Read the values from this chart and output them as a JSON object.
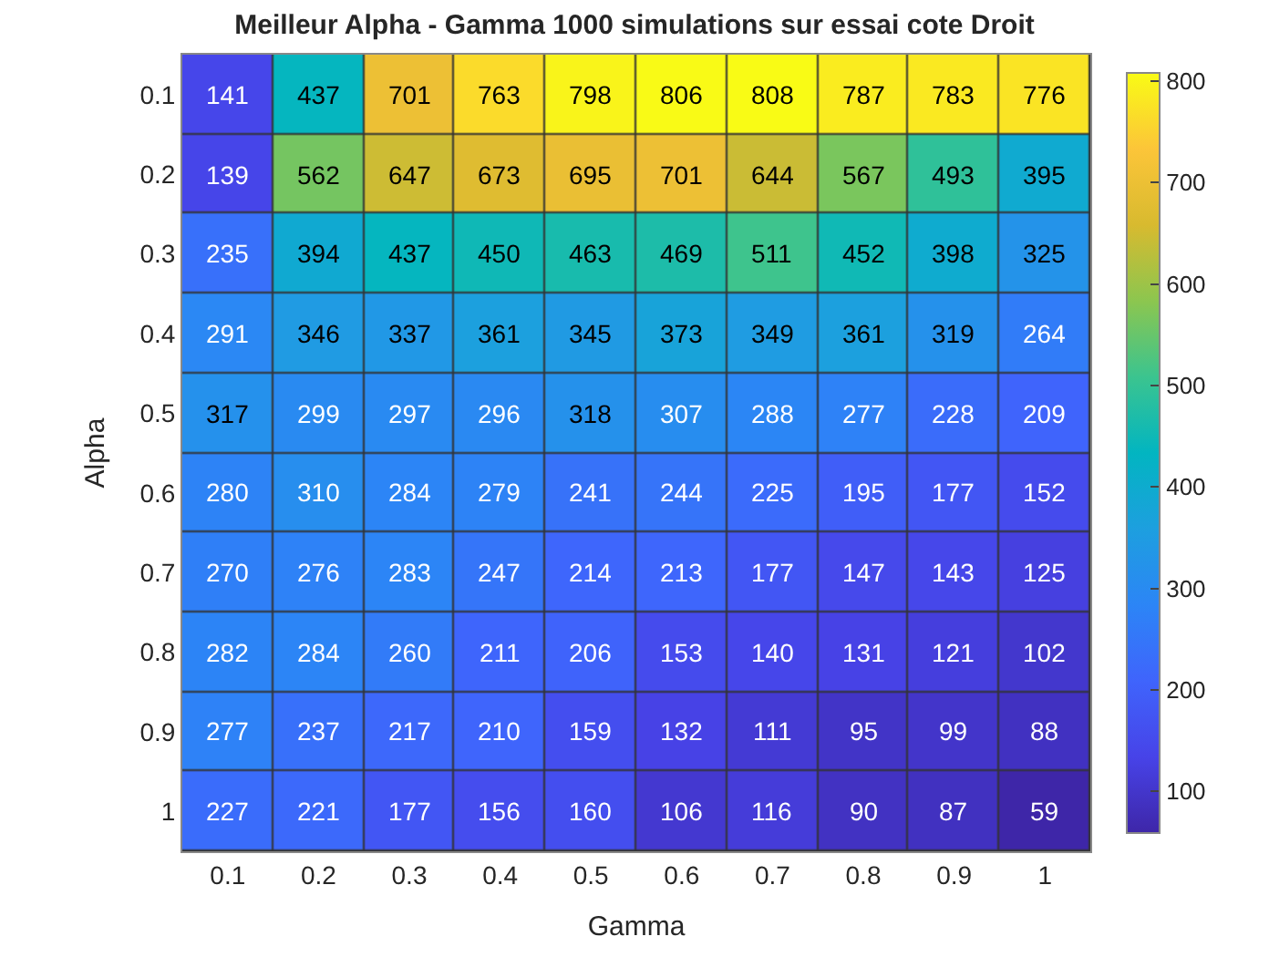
{
  "chart_data": {
    "type": "heatmap",
    "title": "Meilleur Alpha - Gamma 1000 simulations sur essai cote Droit",
    "xlabel": "Gamma",
    "ylabel": "Alpha",
    "categories": [
      "0.1",
      "0.2",
      "0.3",
      "0.4",
      "0.5",
      "0.6",
      "0.7",
      "0.8",
      "0.9",
      "1"
    ],
    "y_categories": [
      "0.1",
      "0.2",
      "0.3",
      "0.4",
      "0.5",
      "0.6",
      "0.7",
      "0.8",
      "0.9",
      "1"
    ],
    "cells": [
      [
        141,
        437,
        701,
        763,
        798,
        806,
        808,
        787,
        783,
        776
      ],
      [
        139,
        562,
        647,
        673,
        695,
        701,
        644,
        567,
        493,
        395
      ],
      [
        235,
        394,
        437,
        450,
        463,
        469,
        511,
        452,
        398,
        325
      ],
      [
        291,
        346,
        337,
        361,
        345,
        373,
        349,
        361,
        319,
        264
      ],
      [
        317,
        299,
        297,
        296,
        318,
        307,
        288,
        277,
        228,
        209
      ],
      [
        280,
        310,
        284,
        279,
        241,
        244,
        225,
        195,
        177,
        152
      ],
      [
        270,
        276,
        283,
        247,
        214,
        213,
        177,
        147,
        143,
        125
      ],
      [
        282,
        284,
        260,
        211,
        206,
        153,
        140,
        131,
        121,
        102
      ],
      [
        277,
        237,
        217,
        210,
        159,
        132,
        111,
        95,
        99,
        88
      ],
      [
        227,
        221,
        177,
        156,
        160,
        106,
        116,
        90,
        87,
        59
      ]
    ],
    "clim": [
      59,
      808
    ],
    "cticks": [
      100,
      200,
      300,
      400,
      500,
      600,
      700,
      800
    ],
    "data_labels": true
  }
}
